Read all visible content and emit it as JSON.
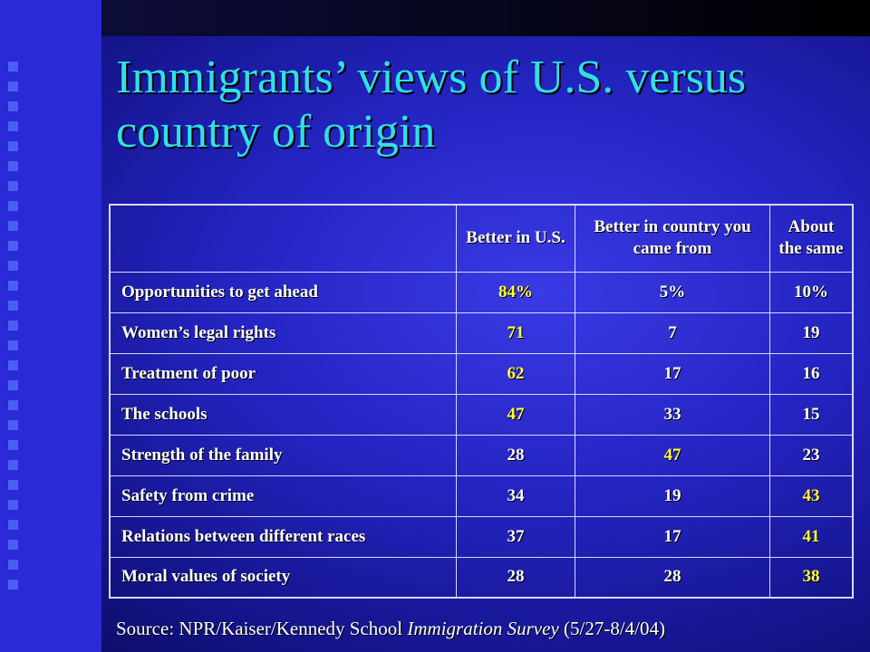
{
  "slide": {
    "title": "Immigrants’ views of U.S. versus country of origin"
  },
  "table": {
    "headers": [
      "Better in U.S.",
      "Better in country you came from",
      "About the same"
    ],
    "rows": [
      {
        "label": "Opportunities to get ahead",
        "values": [
          "84%",
          "5%",
          "10%"
        ],
        "highlight": 0
      },
      {
        "label": "Women’s legal rights",
        "values": [
          "71",
          "7",
          "19"
        ],
        "highlight": 0
      },
      {
        "label": "Treatment of poor",
        "values": [
          "62",
          "17",
          "16"
        ],
        "highlight": 0
      },
      {
        "label": "The schools",
        "values": [
          "47",
          "33",
          "15"
        ],
        "highlight": 0
      },
      {
        "label": "Strength of the family",
        "values": [
          "28",
          "47",
          "23"
        ],
        "highlight": 1
      },
      {
        "label": "Safety from crime",
        "values": [
          "34",
          "19",
          "43"
        ],
        "highlight": 2
      },
      {
        "label": "Relations between different races",
        "values": [
          "37",
          "17",
          "41"
        ],
        "highlight": 2
      },
      {
        "label": "Moral values of society",
        "values": [
          "28",
          "28",
          "38"
        ],
        "highlight": 2
      }
    ]
  },
  "source": {
    "prefix": "Source: NPR/Kaiser/Kennedy School ",
    "italic": "Immigration Survey",
    "suffix": " (5/27-8/4/04)"
  },
  "colors": {
    "title": "#2fe0e8",
    "highlight": "#ffff3c",
    "text": "#ffffff",
    "background": "#2424c2"
  }
}
